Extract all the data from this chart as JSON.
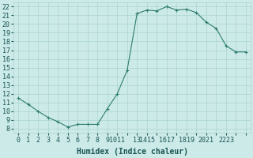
{
  "x": [
    0,
    1,
    2,
    3,
    4,
    5,
    6,
    7,
    8,
    9,
    10,
    11,
    12,
    13,
    14,
    15,
    16,
    17,
    18,
    19,
    20,
    21,
    22,
    23
  ],
  "y": [
    11.5,
    10.8,
    10.0,
    9.3,
    8.8,
    8.2,
    8.5,
    8.5,
    8.5,
    10.3,
    12.0,
    14.7,
    21.2,
    21.6,
    21.5,
    22.0,
    21.6,
    21.7,
    21.3,
    20.2,
    19.5,
    17.5,
    16.8,
    16.8
  ],
  "line_color": "#2e7d6e",
  "marker": "+",
  "marker_color": "#2e7d6e",
  "bg_color": "#cceae8",
  "grid_color": "#aad4d0",
  "xlabel": "Humidex (Indice chaleur)",
  "xlim": [
    -0.5,
    23.5
  ],
  "ylim": [
    7.5,
    22.5
  ],
  "yticks": [
    8,
    9,
    10,
    11,
    12,
    13,
    14,
    15,
    16,
    17,
    18,
    19,
    20,
    21,
    22
  ],
  "xtick_labels": [
    "0",
    "1",
    "2",
    "3",
    "4",
    "5",
    "6",
    "7",
    "8",
    "9",
    "1011",
    "",
    "13",
    "1415",
    "1617",
    "1819",
    "2021",
    "2223"
  ],
  "font_color": "#1a5555",
  "axis_fontsize": 7,
  "tick_fontsize": 6
}
